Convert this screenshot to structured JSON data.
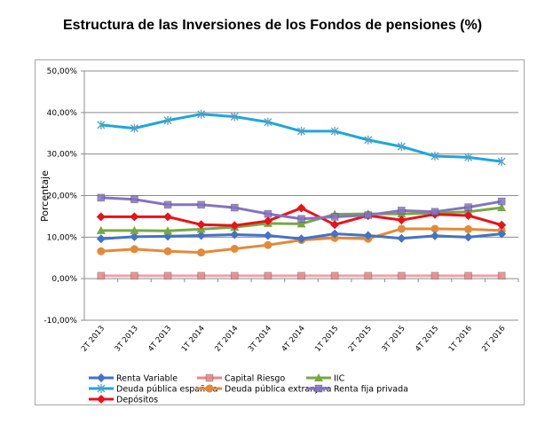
{
  "chart_data": {
    "type": "line",
    "title": "Estructura de las Inversiones de los Fondos de pensiones (%)",
    "xlabel": "",
    "ylabel": "Porcentaje",
    "ylim": [
      -10,
      50
    ],
    "yticks": [
      -10,
      0,
      10,
      20,
      30,
      40,
      50
    ],
    "ytick_labels": [
      "-10,00%",
      "0,00%",
      "10,00%",
      "20,00%",
      "30,00%",
      "40,00%",
      "50,00%"
    ],
    "grid": "horizontal",
    "legend_position": "bottom",
    "categories": [
      "2T 2013",
      "3T 2013",
      "4T 2013",
      "1T 2014",
      "2T 2014",
      "3T 2014",
      "4T 2014",
      "1T 2015",
      "2T 2015",
      "3T 2015",
      "4T 2015",
      "1T 2016",
      "2T 2016"
    ],
    "series": [
      {
        "name": "Renta Variable",
        "color": "#4472c4",
        "marker": "diamond",
        "values": [
          9.6,
          10.1,
          10.2,
          10.4,
          10.6,
          10.4,
          9.6,
          10.8,
          10.4,
          9.7,
          10.3,
          10.0,
          10.8
        ]
      },
      {
        "name": "Capital Riesgo",
        "color": "#e6878a",
        "marker": "square",
        "values": [
          0.7,
          0.7,
          0.7,
          0.7,
          0.7,
          0.7,
          0.7,
          0.7,
          0.7,
          0.7,
          0.7,
          0.7,
          0.7
        ]
      },
      {
        "name": "IIC",
        "color": "#77a844",
        "marker": "triangle",
        "values": [
          11.6,
          11.6,
          11.5,
          11.9,
          12.4,
          13.3,
          13.2,
          15.5,
          15.6,
          15.6,
          15.8,
          16.1,
          17.1
        ]
      },
      {
        "name": "Deuda pública española",
        "color": "#1fa6dd",
        "marker": "star",
        "values": [
          37.0,
          36.2,
          38.1,
          39.6,
          39.0,
          37.7,
          35.5,
          35.5,
          33.4,
          31.8,
          29.5,
          29.2,
          28.2
        ]
      },
      {
        "name": "Deuda pública extranjera",
        "color": "#e38a3a",
        "marker": "circle",
        "values": [
          6.6,
          7.1,
          6.6,
          6.3,
          7.2,
          8.1,
          9.3,
          9.8,
          9.6,
          12.0,
          12.0,
          11.9,
          11.6
        ]
      },
      {
        "name": "Renta fija privada",
        "color": "#8574bf",
        "marker": "square",
        "values": [
          19.5,
          19.1,
          17.8,
          17.8,
          17.1,
          15.6,
          14.4,
          14.9,
          15.3,
          16.4,
          16.1,
          17.2,
          18.6
        ]
      },
      {
        "name": "Depósitos",
        "color": "#e8121a",
        "marker": "diamond",
        "values": [
          14.9,
          14.9,
          14.9,
          13.0,
          12.8,
          13.9,
          17.0,
          13.0,
          15.2,
          14.1,
          15.5,
          15.2,
          12.9
        ]
      }
    ]
  }
}
